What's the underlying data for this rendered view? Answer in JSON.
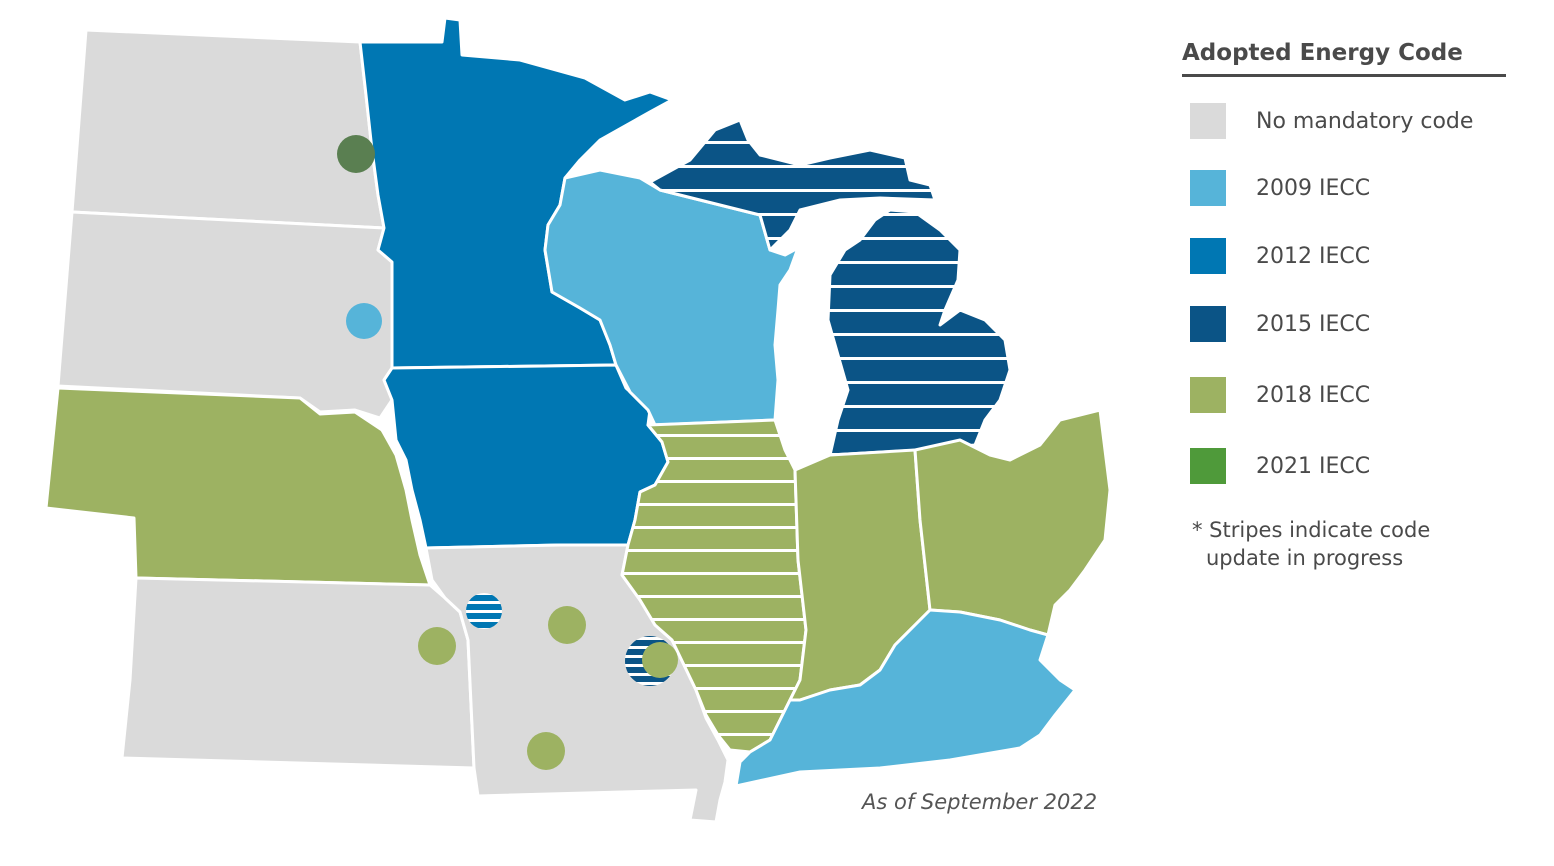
{
  "legend": {
    "title": "Adopted Energy Code",
    "items": [
      {
        "label": "No mandatory code",
        "color": "#dadada"
      },
      {
        "label": "2009 IECC",
        "color": "#56b4d9"
      },
      {
        "label": "2012 IECC",
        "color": "#0077b3"
      },
      {
        "label": "2015 IECC",
        "color": "#0b5486"
      },
      {
        "label": "2018 IECC",
        "color": "#9db262"
      },
      {
        "label": "2021 IECC",
        "color": "#4f9a3a"
      }
    ],
    "footnote_line1": "* Stripes indicate code",
    "footnote_line2": "update in progress"
  },
  "caption": "As of September 2022",
  "states": [
    {
      "name": "North Dakota",
      "code": "No mandatory code",
      "update_in_progress": false
    },
    {
      "name": "South Dakota",
      "code": "No mandatory code",
      "update_in_progress": false
    },
    {
      "name": "Nebraska",
      "code": "2018 IECC",
      "update_in_progress": false
    },
    {
      "name": "Kansas",
      "code": "No mandatory code",
      "update_in_progress": false
    },
    {
      "name": "Minnesota",
      "code": "2012 IECC",
      "update_in_progress": false
    },
    {
      "name": "Iowa",
      "code": "2012 IECC",
      "update_in_progress": false
    },
    {
      "name": "Missouri",
      "code": "No mandatory code",
      "update_in_progress": false
    },
    {
      "name": "Wisconsin",
      "code": "2009 IECC",
      "update_in_progress": false
    },
    {
      "name": "Illinois",
      "code": "2018 IECC",
      "update_in_progress": true
    },
    {
      "name": "Michigan",
      "code": "2015 IECC",
      "update_in_progress": true
    },
    {
      "name": "Indiana",
      "code": "2018 IECC",
      "update_in_progress": false
    },
    {
      "name": "Ohio",
      "code": "2018 IECC",
      "update_in_progress": false
    },
    {
      "name": "Kentucky",
      "code": "2009 IECC",
      "update_in_progress": false
    }
  ],
  "local_markers": [
    {
      "state": "North Dakota",
      "code": "2021 IECC",
      "update_in_progress": false
    },
    {
      "state": "South Dakota",
      "code": "2009 IECC",
      "update_in_progress": false
    },
    {
      "state": "Missouri",
      "code": "2012 IECC",
      "update_in_progress": true
    },
    {
      "state": "Kansas",
      "code": "2018 IECC",
      "update_in_progress": false
    },
    {
      "state": "Missouri",
      "code": "2018 IECC",
      "update_in_progress": false
    },
    {
      "state": "Missouri",
      "code": "2015 IECC",
      "update_in_progress": true
    },
    {
      "state": "Missouri",
      "code": "2018 IECC",
      "update_in_progress": false
    },
    {
      "state": "Missouri",
      "code": "2018 IECC",
      "update_in_progress": false
    }
  ]
}
